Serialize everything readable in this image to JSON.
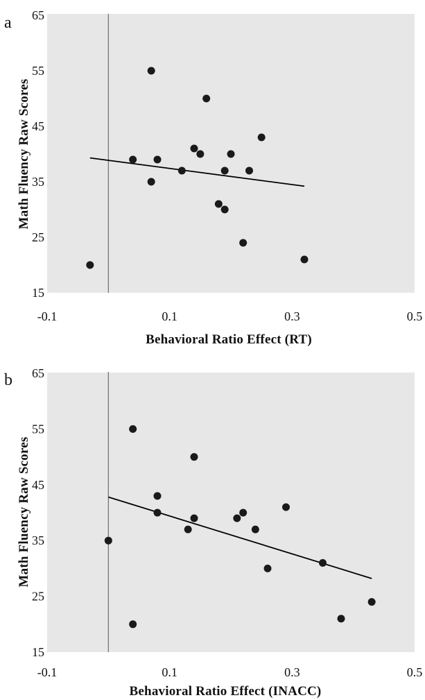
{
  "chart_data": [
    {
      "type": "scatter",
      "panel": "a",
      "xlabel": "Behavioral Ratio Effect (RT)",
      "ylabel": "Math Fluency Raw Scores",
      "xlim": [
        -0.1,
        0.5
      ],
      "ylim": [
        15,
        65
      ],
      "xticks": [
        "-0.1",
        "0.1",
        "0.3",
        "0.5"
      ],
      "yticks": [
        "15",
        "25",
        "35",
        "45",
        "55",
        "65"
      ],
      "grid": false,
      "trendline": {
        "x": [
          -0.03,
          0.32
        ],
        "y": [
          39.3,
          34.2
        ]
      },
      "points": [
        {
          "x": -0.03,
          "y": 20
        },
        {
          "x": 0.04,
          "y": 39
        },
        {
          "x": 0.07,
          "y": 55
        },
        {
          "x": 0.07,
          "y": 35
        },
        {
          "x": 0.08,
          "y": 39
        },
        {
          "x": 0.12,
          "y": 37
        },
        {
          "x": 0.14,
          "y": 41
        },
        {
          "x": 0.15,
          "y": 40
        },
        {
          "x": 0.16,
          "y": 50
        },
        {
          "x": 0.18,
          "y": 31
        },
        {
          "x": 0.19,
          "y": 37
        },
        {
          "x": 0.19,
          "y": 30
        },
        {
          "x": 0.2,
          "y": 40
        },
        {
          "x": 0.22,
          "y": 24
        },
        {
          "x": 0.23,
          "y": 37
        },
        {
          "x": 0.25,
          "y": 43
        },
        {
          "x": 0.32,
          "y": 21
        }
      ]
    },
    {
      "type": "scatter",
      "panel": "b",
      "xlabel": "Behavioral Ratio Effect (INACC)",
      "ylabel": "Math Fluency Raw Scores",
      "xlim": [
        -0.1,
        0.5
      ],
      "ylim": [
        15,
        65
      ],
      "xticks": [
        "-0.1",
        "0.1",
        "0.3",
        "0.5"
      ],
      "yticks": [
        "15",
        "25",
        "35",
        "45",
        "55",
        "65"
      ],
      "grid": false,
      "trendline": {
        "x": [
          0.0,
          0.43
        ],
        "y": [
          42.8,
          28.2
        ]
      },
      "points": [
        {
          "x": 0.0,
          "y": 35
        },
        {
          "x": 0.04,
          "y": 55
        },
        {
          "x": 0.04,
          "y": 20
        },
        {
          "x": 0.08,
          "y": 43
        },
        {
          "x": 0.08,
          "y": 40
        },
        {
          "x": 0.13,
          "y": 37
        },
        {
          "x": 0.14,
          "y": 50
        },
        {
          "x": 0.14,
          "y": 39
        },
        {
          "x": 0.21,
          "y": 39
        },
        {
          "x": 0.22,
          "y": 40
        },
        {
          "x": 0.24,
          "y": 37
        },
        {
          "x": 0.26,
          "y": 30
        },
        {
          "x": 0.29,
          "y": 41
        },
        {
          "x": 0.35,
          "y": 31
        },
        {
          "x": 0.38,
          "y": 21
        },
        {
          "x": 0.43,
          "y": 24
        }
      ]
    }
  ]
}
